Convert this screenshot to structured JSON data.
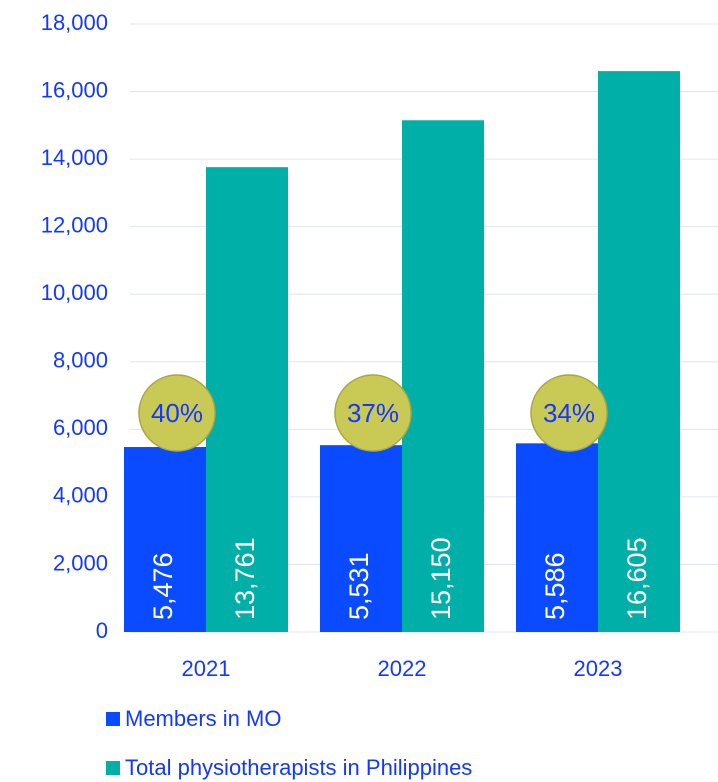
{
  "chart_data": {
    "type": "bar",
    "categories": [
      "2021",
      "2022",
      "2023"
    ],
    "series": [
      {
        "name": "Members in MO",
        "color": "#0a4bff",
        "values": [
          5476,
          5531,
          5586
        ],
        "value_labels": [
          "5,476",
          "5,531",
          "5,586"
        ]
      },
      {
        "name": "Total physiotherapists in Philippines",
        "color": "#00b0a8",
        "values": [
          13761,
          15150,
          16605
        ],
        "value_labels": [
          "13,761",
          "15,150",
          "16,605"
        ]
      }
    ],
    "annotations": [
      "40%",
      "37%",
      "34%"
    ],
    "annotation_color": "#c9c955",
    "ylim": [
      0,
      18000
    ],
    "yticks": [
      0,
      {
        "value": 2000,
        "label": "2,000"
      },
      {
        "value": 4000,
        "label": "4,000"
      },
      {
        "value": 6000,
        "label": "6,000"
      },
      {
        "value": 8000,
        "label": "8,000"
      },
      {
        "value": 10000,
        "label": "10,000"
      },
      {
        "value": 12000,
        "label": "12,000"
      },
      {
        "value": 14000,
        "label": "14,000"
      },
      {
        "value": 16000,
        "label": "16,000"
      },
      {
        "value": 18000,
        "label": "18,000"
      }
    ],
    "grid": true,
    "legend": "bottom"
  }
}
